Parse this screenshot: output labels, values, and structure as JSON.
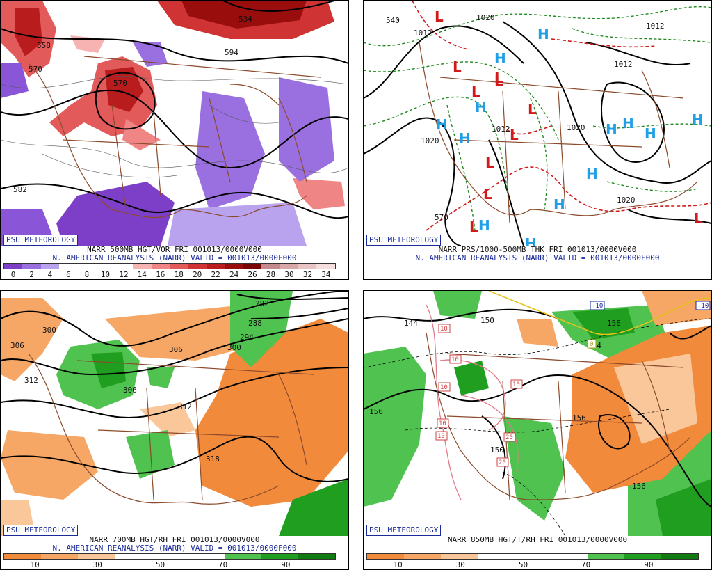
{
  "panels": [
    {
      "brand": "PSU METEOROLOGY",
      "line1": "NARR 500MB HGT/VOR FRI 001013/0000V000",
      "line2": "N. AMERICAN REANALYSIS (NARR) VALID = 001013/0000F000",
      "colorbar_colors": [
        "#7d3fc8",
        "#9a6fe0",
        "#b9a3ee",
        "#ffffff",
        "#ffffff",
        "#ffffff",
        "#ffffff",
        "#f7b2b2",
        "#ef8585",
        "#e25a5a",
        "#cf3333",
        "#b81c1c",
        "#9a0d0d",
        "#7a0505",
        "#c28a8a",
        "#d8a8a8",
        "#e9c4c4",
        "#f6dede"
      ],
      "ticks": [
        "0",
        "2",
        "4",
        "6",
        "8",
        "10",
        "12",
        "14",
        "16",
        "18",
        "20",
        "22",
        "24",
        "26",
        "28",
        "30",
        "32",
        "34"
      ],
      "contour_labels": [
        "534",
        "558",
        "570",
        "570",
        "582",
        "594"
      ]
    },
    {
      "brand": "PSU METEOROLOGY",
      "line1": "NARR PRS/1000-500MB THK FRI 001013/0000V000",
      "line2": "N. AMERICAN REANALYSIS (NARR) VALID = 001013/0000F000",
      "contour_labels": [
        "540",
        "1012",
        "1020",
        "1020",
        "1012",
        "1020",
        "1020",
        "570",
        "1012",
        "1012"
      ],
      "highs": "H",
      "lows": "L"
    },
    {
      "brand": "PSU METEOROLOGY",
      "line1": "NARR 700MB HGT/RH FRI 001013/0000V000",
      "line2": "N. AMERICAN REANALYSIS (NARR) VALID = 001013/0000F000",
      "colorbar_colors": [
        "#f28a3c",
        "#f6a766",
        "#fac79b",
        "#ffffff",
        "#ffffff",
        "#ffffff",
        "#4fc24f",
        "#1f9e1f",
        "#117a11"
      ],
      "ticks": [
        "10",
        "30",
        "50",
        "70",
        "90"
      ],
      "contour_labels": [
        "282",
        "288",
        "294",
        "300",
        "300",
        "306",
        "306",
        "312",
        "306",
        "312",
        "318"
      ]
    },
    {
      "brand": "PSU METEOROLOGY",
      "line1": "NARR 850MB HGT/T/RH FRI 001013/0000V000",
      "line2": "",
      "colorbar_colors": [
        "#f28a3c",
        "#f6a766",
        "#fac79b",
        "#ffffff",
        "#ffffff",
        "#ffffff",
        "#4fc24f",
        "#1f9e1f",
        "#117a11"
      ],
      "ticks": [
        "10",
        "30",
        "50",
        "70",
        "90"
      ],
      "contour_labels": [
        "144",
        "150",
        "144",
        "156",
        "156",
        "156",
        "150",
        "156"
      ],
      "temp_labels": [
        "-10",
        "-10",
        "0",
        "10",
        "10",
        "10",
        "10",
        "10",
        "10",
        "20",
        "20"
      ]
    }
  ]
}
